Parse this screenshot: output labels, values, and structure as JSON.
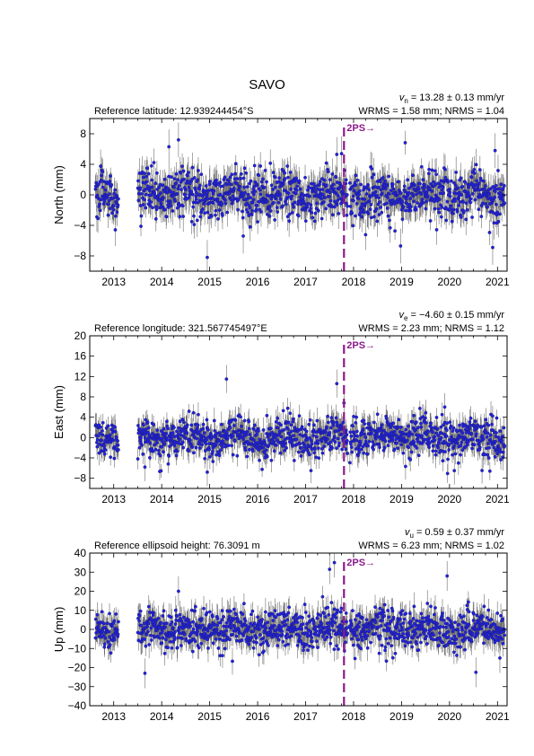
{
  "title": "SAVO",
  "colors": {
    "points": "#2222dd",
    "point_edge": "#1a1a6e",
    "errorbars": "#555555",
    "marker": "#8b1a8b"
  },
  "chart_data": [
    {
      "type": "scatter",
      "component": "north",
      "ylabel": "North (mm)",
      "reference": "Reference latitude: 12.939244454°S",
      "velocity_symbol": "v",
      "velocity_sub": "n",
      "velocity_text": " = 13.28 ± 0.13 mm/yr",
      "stats": "WRMS = 1.58 mm; NRMS = 1.04",
      "xlim": [
        2012.5,
        2021.2
      ],
      "ylim": [
        -10,
        10
      ],
      "yticks": [
        -8,
        -4,
        0,
        4,
        8
      ],
      "xticks": [
        2013,
        2014,
        2015,
        2016,
        2017,
        2018,
        2019,
        2020,
        2021
      ],
      "grid": false,
      "marker": {
        "x": 2017.8,
        "label": "2PS→"
      },
      "data_gap": [
        2013.1,
        2013.5
      ],
      "noise_sd": 1.8,
      "error_sd": 1.9,
      "outliers": [
        [
          2014.15,
          6.3
        ],
        [
          2014.35,
          7.2
        ],
        [
          2014.95,
          -8.2
        ],
        [
          2015.7,
          -5.4
        ],
        [
          2017.65,
          5.3
        ],
        [
          2017.75,
          5.4
        ],
        [
          2018.98,
          -6.7
        ],
        [
          2020.9,
          -6.9
        ],
        [
          2020.95,
          5.8
        ]
      ]
    },
    {
      "type": "scatter",
      "component": "east",
      "ylabel": "East (mm)",
      "reference": "Reference longitude: 321.567745497°E",
      "velocity_symbol": "v",
      "velocity_sub": "e",
      "velocity_text": " = −4.60 ± 0.15 mm/yr",
      "stats": "WRMS = 2.23 mm; NRMS = 1.12",
      "xlim": [
        2012.5,
        2021.2
      ],
      "ylim": [
        -10,
        20
      ],
      "yticks": [
        -8,
        -4,
        0,
        4,
        8,
        12,
        16,
        20
      ],
      "xticks": [
        2013,
        2014,
        2015,
        2016,
        2017,
        2018,
        2019,
        2020,
        2021
      ],
      "grid": false,
      "marker": {
        "x": 2017.8,
        "label": "2PS→"
      },
      "data_gap": [
        2013.1,
        2013.5
      ],
      "noise_sd": 2.2,
      "error_sd": 2.3,
      "outliers": [
        [
          2013.65,
          -5.8
        ],
        [
          2014.95,
          -6.8
        ],
        [
          2015.35,
          11.5
        ],
        [
          2017.65,
          10.6
        ],
        [
          2017.8,
          6.8
        ],
        [
          2019.9,
          6.0
        ],
        [
          2020.1,
          -6.5
        ]
      ]
    },
    {
      "type": "scatter",
      "component": "up",
      "ylabel": "Up (mm)",
      "reference": "Reference ellipsoid height: 76.3091 m",
      "velocity_symbol": "v",
      "velocity_sub": "u",
      "velocity_text": " = 0.59 ± 0.37 mm/yr",
      "stats": "WRMS = 6.23 mm; NRMS = 1.02",
      "xlim": [
        2012.5,
        2021.2
      ],
      "ylim": [
        -40,
        40
      ],
      "yticks": [
        -40,
        -30,
        -20,
        -10,
        0,
        10,
        20,
        30,
        40
      ],
      "xticks": [
        2013,
        2014,
        2015,
        2016,
        2017,
        2018,
        2019,
        2020,
        2021
      ],
      "grid": false,
      "marker": {
        "x": 2017.8,
        "label": "2PS→"
      },
      "data_gap": [
        2013.1,
        2013.5
      ],
      "noise_sd": 6.0,
      "error_sd": 6.5,
      "outliers": [
        [
          2013.65,
          -23.0
        ],
        [
          2014.35,
          20.0
        ],
        [
          2017.5,
          31.5
        ],
        [
          2017.6,
          35.0
        ],
        [
          2019.95,
          28.0
        ],
        [
          2020.55,
          -22.5
        ],
        [
          2021.05,
          -15.0
        ]
      ]
    }
  ]
}
